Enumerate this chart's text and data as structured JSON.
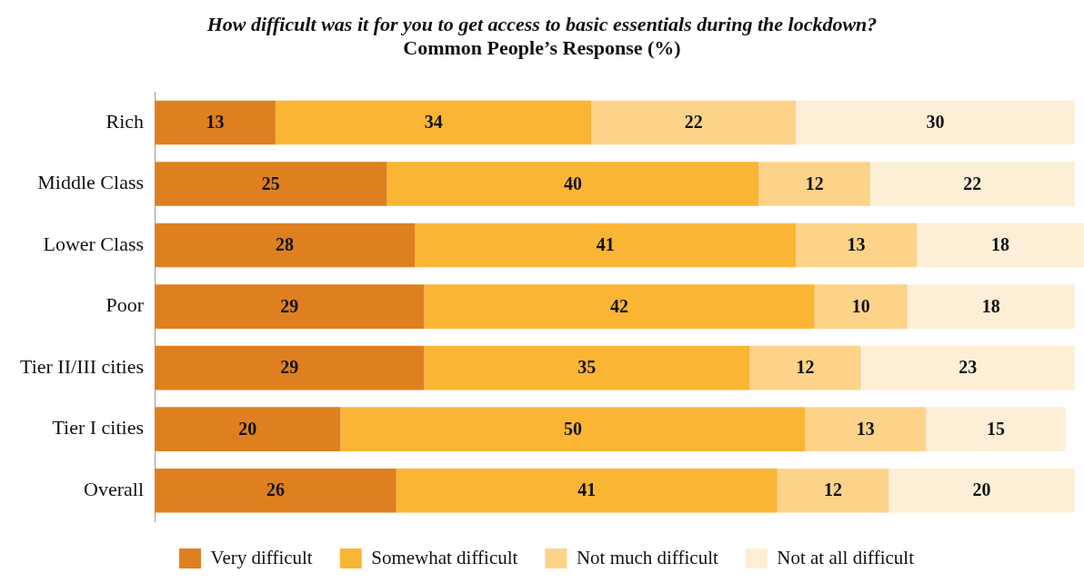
{
  "chart_data": {
    "type": "bar",
    "orientation": "horizontal",
    "stacked": true,
    "title": "How difficult was it for you to get access to basic essentials during the lockdown?",
    "subtitle": "Common People’s Response (%)",
    "categories": [
      "Rich",
      "Middle Class",
      "Lower Class",
      "Poor",
      "Tier II/III cities",
      "Tier I cities",
      "Overall"
    ],
    "series": [
      {
        "name": "Very difficult",
        "color": "#de8020",
        "values": [
          13,
          25,
          28,
          29,
          29,
          20,
          26
        ]
      },
      {
        "name": "Somewhat difficult",
        "color": "#fbb534",
        "values": [
          34,
          40,
          41,
          42,
          35,
          50,
          41
        ]
      },
      {
        "name": "Not much difficult",
        "color": "#fdd38a",
        "values": [
          22,
          12,
          13,
          10,
          12,
          13,
          12
        ]
      },
      {
        "name": "Not at all difficult",
        "color": "#fdefd6",
        "values": [
          30,
          22,
          18,
          18,
          23,
          15,
          20
        ]
      }
    ],
    "data_labels": true,
    "legend": "bottom",
    "grid": false,
    "tick_labels": "y"
  }
}
